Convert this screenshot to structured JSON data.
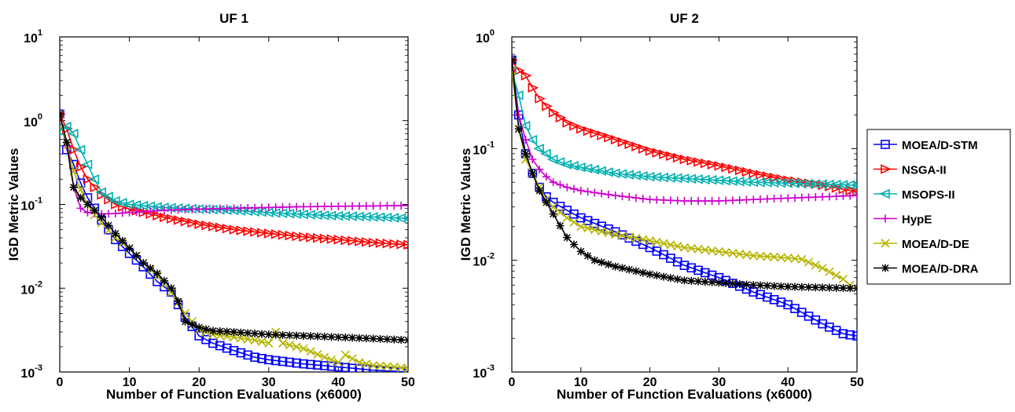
{
  "chart_data": [
    {
      "type": "line",
      "title": "UF 1",
      "xlabel": "Number of Function Evaluations (x6000)",
      "ylabel": "IGD Metric Values",
      "xlim": [
        0,
        50
      ],
      "ylim": [
        0.001,
        10
      ],
      "yscale": "log",
      "xticks": [
        "0",
        "10",
        "20",
        "30",
        "40",
        "50"
      ],
      "yticks": [
        {
          "base": "10",
          "exp": "-3"
        },
        {
          "base": "10",
          "exp": "-2"
        },
        {
          "base": "10",
          "exp": "-1"
        },
        {
          "base": "10",
          "exp": "0"
        },
        {
          "base": "10",
          "exp": "1"
        }
      ],
      "series": [
        {
          "name": "MOEA/D-STM",
          "color": "#0000ff",
          "marker": "square",
          "x": [
            0,
            1,
            2,
            3,
            4,
            5,
            6,
            8,
            10,
            12,
            14,
            16,
            18,
            20,
            22,
            25,
            28,
            30,
            35,
            40,
            45,
            50
          ],
          "y": [
            1.2,
            0.45,
            0.3,
            0.18,
            0.12,
            0.09,
            0.065,
            0.038,
            0.026,
            0.018,
            0.012,
            0.009,
            0.0045,
            0.0027,
            0.0022,
            0.0018,
            0.0015,
            0.0014,
            0.00125,
            0.00115,
            0.00105,
            0.001
          ]
        },
        {
          "name": "NSGA-II",
          "color": "#ff0000",
          "marker": "triangle-right",
          "x": [
            0,
            1,
            2,
            3,
            4,
            5,
            6,
            8,
            10,
            15,
            20,
            25,
            30,
            35,
            40,
            45,
            50
          ],
          "y": [
            1.2,
            0.8,
            0.45,
            0.28,
            0.2,
            0.16,
            0.13,
            0.1,
            0.088,
            0.07,
            0.058,
            0.05,
            0.045,
            0.041,
            0.038,
            0.035,
            0.033
          ]
        },
        {
          "name": "MSOPS-II",
          "color": "#00b0b0",
          "marker": "triangle-left",
          "x": [
            0,
            1,
            2,
            3,
            4,
            5,
            6,
            8,
            10,
            15,
            20,
            25,
            30,
            35,
            40,
            45,
            50
          ],
          "y": [
            0.75,
            0.85,
            0.7,
            0.45,
            0.3,
            0.2,
            0.14,
            0.11,
            0.1,
            0.092,
            0.088,
            0.085,
            0.08,
            0.076,
            0.073,
            0.071,
            0.068
          ]
        },
        {
          "name": "HypE",
          "color": "#cc00cc",
          "marker": "plus",
          "x": [
            0,
            1,
            2,
            3,
            4,
            5,
            6,
            8,
            10,
            15,
            20,
            25,
            30,
            35,
            40,
            45,
            50
          ],
          "y": [
            1.2,
            0.5,
            0.16,
            0.09,
            0.08,
            0.078,
            0.077,
            0.078,
            0.08,
            0.085,
            0.088,
            0.09,
            0.092,
            0.094,
            0.095,
            0.096,
            0.097
          ]
        },
        {
          "name": "MOEA/D-DE",
          "color": "#b5b500",
          "marker": "x",
          "x": [
            0,
            1,
            2,
            3,
            4,
            5,
            6,
            8,
            10,
            12,
            14,
            16,
            18,
            20,
            22,
            25,
            28,
            30,
            31,
            32,
            35,
            38,
            40,
            41,
            43,
            45,
            48,
            50
          ],
          "y": [
            1.2,
            0.5,
            0.25,
            0.15,
            0.1,
            0.075,
            0.06,
            0.04,
            0.03,
            0.02,
            0.014,
            0.009,
            0.005,
            0.0032,
            0.0028,
            0.0026,
            0.0024,
            0.0022,
            0.003,
            0.0022,
            0.0019,
            0.0015,
            0.0013,
            0.0016,
            0.0013,
            0.0012,
            0.00115,
            0.0011
          ]
        },
        {
          "name": "MOEA/D-DRA",
          "color": "#000000",
          "marker": "asterisk",
          "x": [
            0,
            1,
            2,
            3,
            4,
            5,
            6,
            8,
            10,
            12,
            14,
            16,
            17,
            18,
            20,
            22,
            25,
            30,
            35,
            40,
            45,
            50
          ],
          "y": [
            1.2,
            0.55,
            0.16,
            0.12,
            0.1,
            0.085,
            0.07,
            0.045,
            0.03,
            0.02,
            0.015,
            0.01,
            0.007,
            0.004,
            0.0034,
            0.0031,
            0.003,
            0.0028,
            0.0027,
            0.0026,
            0.0025,
            0.0024
          ]
        }
      ]
    },
    {
      "type": "line",
      "title": "UF 2",
      "xlabel": "Number of Function Evaluations (x6000)",
      "ylabel": "IGD Metric Values",
      "xlim": [
        0,
        50
      ],
      "ylim": [
        0.001,
        1
      ],
      "yscale": "log",
      "xticks": [
        "0",
        "10",
        "20",
        "30",
        "40",
        "50"
      ],
      "yticks": [
        {
          "base": "10",
          "exp": "-3"
        },
        {
          "base": "10",
          "exp": "-2"
        },
        {
          "base": "10",
          "exp": "-1"
        },
        {
          "base": "10",
          "exp": "0"
        }
      ],
      "series": [
        {
          "name": "MOEA/D-STM",
          "color": "#0000ff",
          "marker": "square",
          "x": [
            0,
            1,
            2,
            3,
            4,
            5,
            6,
            8,
            10,
            15,
            20,
            25,
            30,
            35,
            40,
            45,
            48,
            50
          ],
          "y": [
            0.62,
            0.2,
            0.09,
            0.06,
            0.045,
            0.037,
            0.033,
            0.028,
            0.024,
            0.018,
            0.013,
            0.009,
            0.007,
            0.0052,
            0.004,
            0.0027,
            0.0022,
            0.0021
          ]
        },
        {
          "name": "NSGA-II",
          "color": "#ff0000",
          "marker": "triangle-right",
          "x": [
            0,
            1,
            2,
            3,
            4,
            5,
            6,
            8,
            10,
            15,
            20,
            25,
            30,
            35,
            40,
            45,
            50
          ],
          "y": [
            0.62,
            0.5,
            0.45,
            0.35,
            0.28,
            0.24,
            0.21,
            0.17,
            0.15,
            0.12,
            0.095,
            0.08,
            0.07,
            0.06,
            0.052,
            0.047,
            0.041
          ]
        },
        {
          "name": "MSOPS-II",
          "color": "#00b0b0",
          "marker": "triangle-left",
          "x": [
            0,
            1,
            2,
            3,
            4,
            5,
            6,
            8,
            10,
            15,
            20,
            25,
            30,
            35,
            40,
            45,
            50
          ],
          "y": [
            0.5,
            0.3,
            0.16,
            0.12,
            0.1,
            0.09,
            0.08,
            0.072,
            0.068,
            0.06,
            0.056,
            0.054,
            0.052,
            0.05,
            0.049,
            0.048,
            0.047
          ]
        },
        {
          "name": "HypE",
          "color": "#cc00cc",
          "marker": "plus",
          "x": [
            0,
            1,
            2,
            3,
            4,
            5,
            6,
            8,
            10,
            15,
            20,
            25,
            30,
            35,
            40,
            45,
            50
          ],
          "y": [
            0.5,
            0.2,
            0.12,
            0.08,
            0.065,
            0.056,
            0.05,
            0.045,
            0.042,
            0.038,
            0.035,
            0.034,
            0.034,
            0.035,
            0.036,
            0.037,
            0.038
          ]
        },
        {
          "name": "MOEA/D-DE",
          "color": "#b5b500",
          "marker": "x",
          "x": [
            0,
            1,
            2,
            3,
            4,
            5,
            6,
            8,
            10,
            15,
            20,
            25,
            30,
            35,
            40,
            42,
            45,
            48,
            49
          ],
          "y": [
            0.5,
            0.15,
            0.08,
            0.06,
            0.045,
            0.035,
            0.03,
            0.024,
            0.02,
            0.017,
            0.015,
            0.013,
            0.012,
            0.011,
            0.0105,
            0.0102,
            0.0085,
            0.0068,
            0.006
          ]
        },
        {
          "name": "MOEA/D-DRA",
          "color": "#000000",
          "marker": "asterisk",
          "x": [
            0,
            1,
            2,
            3,
            4,
            5,
            6,
            8,
            10,
            12,
            15,
            20,
            25,
            30,
            35,
            40,
            45,
            50
          ],
          "y": [
            0.62,
            0.15,
            0.09,
            0.06,
            0.042,
            0.033,
            0.026,
            0.016,
            0.012,
            0.01,
            0.0088,
            0.0075,
            0.0066,
            0.0063,
            0.006,
            0.0058,
            0.0057,
            0.0056
          ]
        }
      ]
    }
  ],
  "legend": {
    "placement": "right",
    "entries": [
      "MOEA/D-STM",
      "NSGA-II",
      "MSOPS-II",
      "HypE",
      "MOEA/D-DE",
      "MOEA/D-DRA"
    ]
  }
}
